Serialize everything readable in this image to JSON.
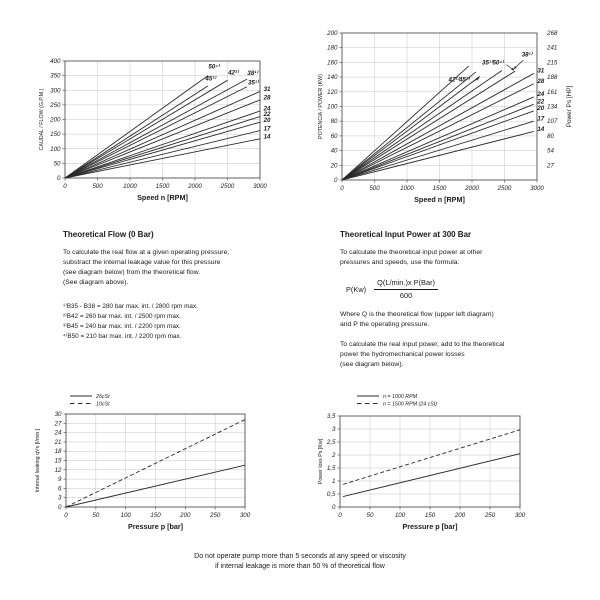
{
  "chart_data": [
    {
      "id": "theoretical-flow",
      "type": "line",
      "title": "",
      "xlabel": "Speed n [RPM]",
      "ylabel": "CAUDAL / FLOW (G.P.M.)",
      "xlim": [
        0,
        3000
      ],
      "ylim": [
        0,
        400
      ],
      "xticks": [
        0,
        500,
        1000,
        1500,
        2000,
        2500,
        3000
      ],
      "yticks": [
        0,
        50,
        100,
        150,
        200,
        250,
        300,
        350,
        400
      ],
      "grid": true,
      "series": [
        {
          "name": "50",
          "dash": false,
          "points": [
            [
              0,
              0
            ],
            [
              2200,
              350
            ]
          ],
          "label": {
            "text": "50⁴⁾",
            "x": 2290,
            "y": 374,
            "anchor": "middle"
          }
        },
        {
          "name": "45",
          "dash": false,
          "points": [
            [
              0,
              0
            ],
            [
              2200,
              315
            ]
          ],
          "label": {
            "text": "45³⁾",
            "x": 2240,
            "y": 333,
            "anchor": "middle"
          }
        },
        {
          "name": "42",
          "dash": false,
          "points": [
            [
              0,
              0
            ],
            [
              2500,
              334
            ]
          ],
          "label": {
            "text": "42²⁾",
            "x": 2590,
            "y": 353,
            "anchor": "middle"
          }
        },
        {
          "name": "38",
          "dash": false,
          "points": [
            [
              0,
              0
            ],
            [
              2800,
              338
            ]
          ],
          "label": {
            "text": "38¹⁾",
            "x": 2885,
            "y": 352,
            "anchor": "middle"
          }
        },
        {
          "name": "35",
          "dash": false,
          "points": [
            [
              0,
              0
            ],
            [
              2800,
              312
            ]
          ],
          "label": {
            "text": "35¹⁾",
            "x": 2895,
            "y": 320,
            "anchor": "middle"
          }
        },
        {
          "name": "31",
          "dash": false,
          "points": [
            [
              0,
              0
            ],
            [
              3000,
              296
            ]
          ],
          "label": {
            "text": "31",
            "x": 3055,
            "y": 297,
            "anchor": "start"
          }
        },
        {
          "name": "28",
          "dash": false,
          "points": [
            [
              0,
              0
            ],
            [
              3000,
              267
            ]
          ],
          "label": {
            "text": "28",
            "x": 3055,
            "y": 268,
            "anchor": "start"
          }
        },
        {
          "name": "24",
          "dash": false,
          "points": [
            [
              0,
              0
            ],
            [
              3000,
              229
            ]
          ],
          "label": {
            "text": "24",
            "x": 3055,
            "y": 231,
            "anchor": "start"
          }
        },
        {
          "name": "22",
          "dash": false,
          "points": [
            [
              0,
              0
            ],
            [
              3000,
              210
            ]
          ],
          "label": {
            "text": "22",
            "x": 3055,
            "y": 212,
            "anchor": "start"
          }
        },
        {
          "name": "20",
          "dash": false,
          "points": [
            [
              0,
              0
            ],
            [
              3000,
              191
            ]
          ],
          "label": {
            "text": "20",
            "x": 3055,
            "y": 192,
            "anchor": "start"
          }
        },
        {
          "name": "17",
          "dash": false,
          "points": [
            [
              0,
              0
            ],
            [
              3000,
              162
            ]
          ],
          "label": {
            "text": "17",
            "x": 3055,
            "y": 163,
            "anchor": "start"
          }
        },
        {
          "name": "14",
          "dash": false,
          "points": [
            [
              0,
              0
            ],
            [
              3000,
              134
            ]
          ],
          "label": {
            "text": "14",
            "x": 3055,
            "y": 135,
            "anchor": "start"
          }
        }
      ]
    },
    {
      "id": "theoretical-power",
      "type": "line",
      "title": "",
      "xlabel": "Speed n [RPM]",
      "ylabel": "POTENCIA / POWER (KW)",
      "xlim": [
        0,
        3000
      ],
      "ylim": [
        0,
        200
      ],
      "xticks": [
        0,
        500,
        1000,
        1500,
        2000,
        2500,
        3000
      ],
      "yticks": [
        0,
        20,
        40,
        60,
        80,
        100,
        120,
        140,
        160,
        180,
        200
      ],
      "grid": true,
      "right_axis": {
        "title": "Power Ps [HP]",
        "values": [
          20,
          40,
          60,
          80,
          100,
          120,
          140,
          160,
          180,
          200
        ],
        "labels": [
          "27",
          "54",
          "80",
          "107",
          "134",
          "161",
          "188",
          "215",
          "241",
          "268"
        ]
      },
      "series": [
        {
          "name": "50",
          "dash": false,
          "points": [
            [
              0,
              0
            ],
            [
              1950,
              155
            ]
          ]
        },
        {
          "name": "45",
          "dash": false,
          "points": [
            [
              0,
              0
            ],
            [
              2060,
              147
            ]
          ]
        },
        {
          "name": "42",
          "dash": false,
          "points": [
            [
              0,
              0
            ],
            [
              2120,
              141
            ]
          ]
        },
        {
          "name": "38",
          "dash": false,
          "points": [
            [
              0,
              0
            ],
            [
              2460,
              149
            ]
          ]
        },
        {
          "name": "35",
          "dash": false,
          "points": [
            [
              0,
              0
            ],
            [
              2660,
              148
            ]
          ]
        },
        {
          "name": "31",
          "dash": false,
          "points": [
            [
              0,
              0
            ],
            [
              2950,
              145
            ]
          ],
          "label": {
            "text": "31",
            "x": 3005,
            "y": 146,
            "anchor": "start"
          }
        },
        {
          "name": "28",
          "dash": false,
          "points": [
            [
              0,
              0
            ],
            [
              2950,
              131
            ]
          ],
          "label": {
            "text": "28",
            "x": 3005,
            "y": 132,
            "anchor": "start"
          }
        },
        {
          "name": "24",
          "dash": false,
          "points": [
            [
              0,
              0
            ],
            [
              2950,
              113
            ]
          ],
          "label": {
            "text": "24",
            "x": 3005,
            "y": 114,
            "anchor": "start"
          }
        },
        {
          "name": "22",
          "dash": false,
          "points": [
            [
              0,
              0
            ],
            [
              2950,
              103
            ]
          ],
          "label": {
            "text": "22",
            "x": 3005,
            "y": 104,
            "anchor": "start"
          }
        },
        {
          "name": "20",
          "dash": false,
          "points": [
            [
              0,
              0
            ],
            [
              2950,
              94
            ]
          ],
          "label": {
            "text": "20",
            "x": 3005,
            "y": 95,
            "anchor": "start"
          }
        },
        {
          "name": "17",
          "dash": false,
          "points": [
            [
              0,
              0
            ],
            [
              2950,
              80
            ]
          ],
          "label": {
            "text": "17",
            "x": 3005,
            "y": 81,
            "anchor": "start"
          }
        },
        {
          "name": "14",
          "dash": false,
          "points": [
            [
              0,
              0
            ],
            [
              2950,
              66
            ]
          ],
          "label": {
            "text": "14",
            "x": 3005,
            "y": 67,
            "anchor": "start"
          }
        }
      ],
      "annotations": [
        {
          "text": "42²⁾45³⁾",
          "x": 1800,
          "y": 134,
          "arrow": [
            [
              2020,
              134
            ],
            [
              2110,
              139
            ]
          ]
        },
        {
          "text": "35¹⁾50⁴⁾",
          "x": 2320,
          "y": 157,
          "arrow": [
            [
              2530,
              157
            ],
            [
              2650,
              149
            ]
          ]
        },
        {
          "text": "38¹⁾",
          "x": 2845,
          "y": 168,
          "arrow": [
            [
              2790,
              163
            ],
            [
              2640,
              151
            ]
          ]
        }
      ]
    },
    {
      "id": "internal-leakage",
      "type": "line",
      "title": "",
      "xlabel": "Pressure p [bar]",
      "ylabel": "Internal leaking qVs [l/min.]",
      "xlim": [
        0,
        300
      ],
      "ylim": [
        0,
        30
      ],
      "xticks": [
        0,
        50,
        100,
        150,
        200,
        250,
        300
      ],
      "yticks": [
        0,
        3,
        6,
        9,
        12,
        15,
        18,
        21,
        24,
        27,
        30
      ],
      "grid": true,
      "legend": [
        {
          "label": "26cSt",
          "dash": false
        },
        {
          "label": "10cSt",
          "dash": true
        }
      ],
      "series": [
        {
          "name": "26cSt",
          "dash": false,
          "points": [
            [
              0,
              0
            ],
            [
              300,
              13.5
            ]
          ]
        },
        {
          "name": "10cSt",
          "dash": true,
          "points": [
            [
              0,
              0
            ],
            [
              300,
              28.2
            ]
          ]
        }
      ]
    },
    {
      "id": "power-loss",
      "type": "line",
      "title": "",
      "xlabel": "Pressure p [bar]",
      "ylabel": "Power loss Ps [Kw]",
      "xlim": [
        0,
        300
      ],
      "ylim": [
        0,
        3.5
      ],
      "xticks": [
        0,
        50,
        100,
        150,
        200,
        250,
        300
      ],
      "yticks": [
        0,
        0.5,
        1,
        1.5,
        2,
        2.5,
        3,
        3.5
      ],
      "ytick_labels": [
        "0",
        "0,5",
        "1",
        "1,5",
        "2",
        "2,5",
        "3",
        "3,5"
      ],
      "grid": true,
      "legend": [
        {
          "label": "n = 1000 RPM",
          "dash": false
        },
        {
          "label": "n = 1500 RPM  (24 cSt)",
          "dash": true
        }
      ],
      "series": [
        {
          "name": "n = 1000 RPM",
          "dash": false,
          "points": [
            [
              5,
              0.4
            ],
            [
              300,
              2.05
            ]
          ]
        },
        {
          "name": "n = 1500 RPM (24 cSt)",
          "dash": true,
          "points": [
            [
              5,
              0.87
            ],
            [
              300,
              2.97
            ]
          ]
        }
      ]
    }
  ],
  "text_left": {
    "title": "Theoretical Flow (0 Bar)",
    "para": [
      "To calculate the real flow at a given operating pressure,",
      "substract the internal leakage value for this pressure",
      "(see diagram below) from the theoretical flow.",
      "(See diagram above)."
    ],
    "footnotes": [
      "¹⁾B35 - B38 = 280 bar max. int. / 2800 rpm max.",
      "²⁾B42 = 260 bar max. int. / 2500 rpm max.",
      "³⁾B45 = 240 bar max. int. / 2200 rpm max.",
      "⁴⁾B50 = 210 bar max. int. / 2200 rpm max."
    ]
  },
  "text_right": {
    "title": "Theoretical Input Power at 300 Bar",
    "para1": [
      "To calculate the theoretical input power at other",
      "pressures and speeds, use the formula:"
    ],
    "formula": {
      "lhs": "P(Kw)",
      "numerator": "Q(L/min.)x P(Bar)",
      "denominator": "600"
    },
    "para2": [
      "Where Q is the theoretical flow (upper left diagram)",
      "and P the operating pressure."
    ],
    "para3": [
      "To calculate the real input power, add to the theoretical",
      "power the hydromechanical power losses",
      "(see diagram below)."
    ]
  },
  "caption": {
    "line1": "Do not operate pump more than 5 seconds at any speed or viscosity",
    "line2": "if internal leakage is more than 50 % of theoretical flow"
  },
  "colors": {
    "line": "#2a2a2a",
    "grid": "#c4c4c4",
    "border": "#555555",
    "text": "#1a1a1a"
  }
}
